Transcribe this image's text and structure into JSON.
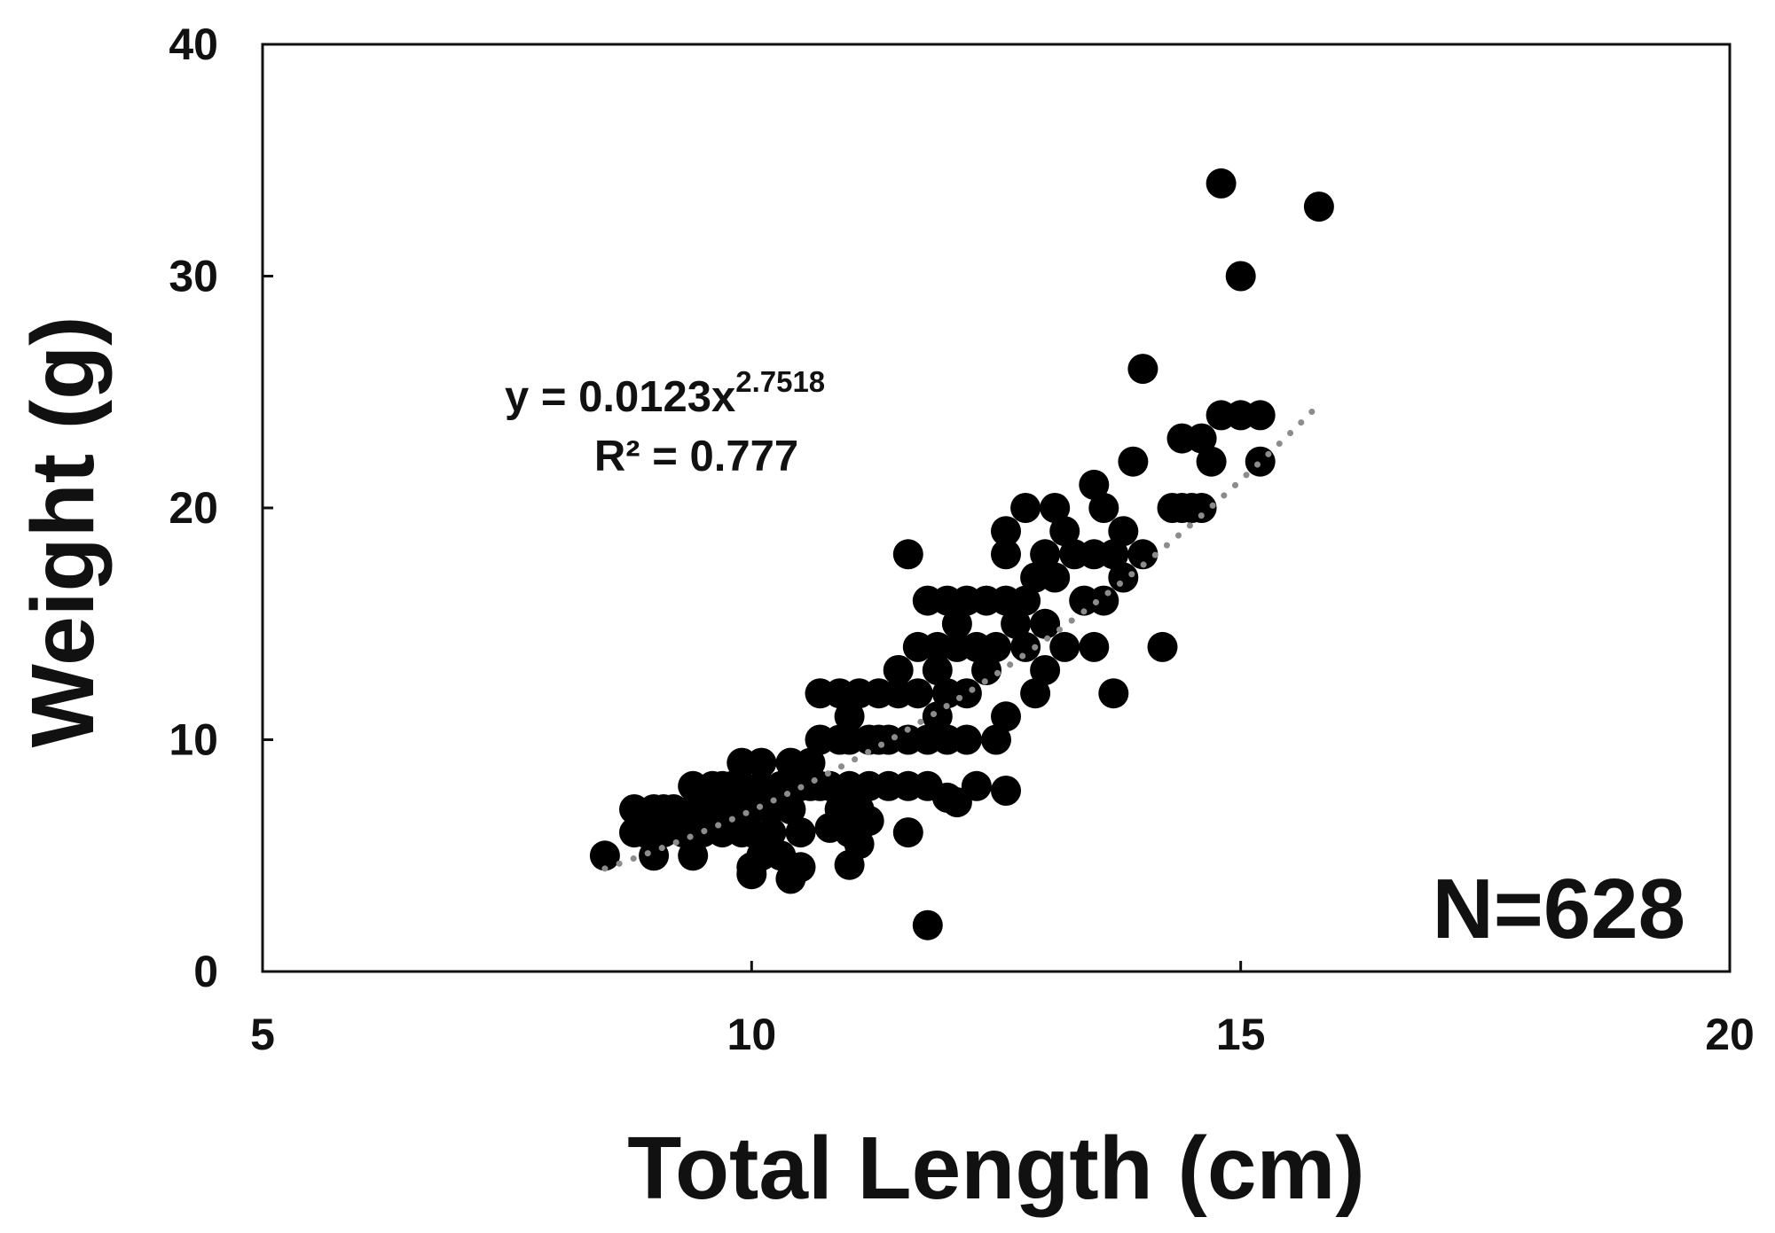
{
  "chart_data": {
    "type": "scatter",
    "xlabel": "Total Length (cm)",
    "ylabel": "Weight (g)",
    "xlim": [
      5,
      20
    ],
    "ylim": [
      0,
      40
    ],
    "xticks": [
      "5",
      "10",
      "15",
      "20"
    ],
    "yticks": [
      "0",
      "10",
      "20",
      "30",
      "40"
    ],
    "grid": false,
    "colors": {
      "points": "#000000",
      "trendline": "#8c8c8c",
      "axes": "#111111"
    },
    "annotations": {
      "equation_prefix": "y = 0.0123x",
      "equation_exponent": "2.7518",
      "r_squared": "R² = 0.777",
      "n_label": "N=628"
    },
    "trendline": {
      "type": "power",
      "a": 0.0123,
      "b": 2.7518,
      "x_range": [
        8.5,
        15.8
      ],
      "style": "dotted"
    },
    "series": [
      {
        "points": [
          [
            8.5,
            5
          ],
          [
            8.8,
            7
          ],
          [
            8.8,
            6
          ],
          [
            8.9,
            6
          ],
          [
            9.0,
            7
          ],
          [
            9.0,
            6
          ],
          [
            9.0,
            5
          ],
          [
            9.1,
            7
          ],
          [
            9.1,
            6
          ],
          [
            9.2,
            7
          ],
          [
            9.2,
            6.5
          ],
          [
            9.3,
            6
          ],
          [
            9.4,
            7
          ],
          [
            9.4,
            5
          ],
          [
            9.4,
            8
          ],
          [
            9.5,
            7
          ],
          [
            9.5,
            6
          ],
          [
            9.6,
            8
          ],
          [
            9.6,
            7
          ],
          [
            9.7,
            8
          ],
          [
            9.7,
            6
          ],
          [
            9.8,
            7
          ],
          [
            9.8,
            8
          ],
          [
            9.9,
            6
          ],
          [
            9.9,
            8
          ],
          [
            9.9,
            9
          ],
          [
            10.0,
            7
          ],
          [
            10.0,
            6
          ],
          [
            10.0,
            4.5
          ],
          [
            10.0,
            4.2
          ],
          [
            10.1,
            9
          ],
          [
            10.1,
            8
          ],
          [
            10.1,
            5
          ],
          [
            10.2,
            7
          ],
          [
            10.2,
            6
          ],
          [
            10.3,
            8
          ],
          [
            10.3,
            5
          ],
          [
            10.4,
            9
          ],
          [
            10.4,
            7
          ],
          [
            10.4,
            4
          ],
          [
            10.5,
            8
          ],
          [
            10.5,
            6
          ],
          [
            10.5,
            4.5
          ],
          [
            10.6,
            8
          ],
          [
            10.6,
            9
          ],
          [
            10.7,
            8
          ],
          [
            10.7,
            10
          ],
          [
            10.7,
            12
          ],
          [
            10.8,
            8
          ],
          [
            10.8,
            6.2
          ],
          [
            10.9,
            10
          ],
          [
            10.9,
            12
          ],
          [
            10.9,
            7
          ],
          [
            11.0,
            10
          ],
          [
            11.0,
            11
          ],
          [
            11.0,
            8
          ],
          [
            11.0,
            6
          ],
          [
            11.0,
            4.6
          ],
          [
            11.1,
            12
          ],
          [
            11.1,
            7
          ],
          [
            11.1,
            5.5
          ],
          [
            11.2,
            10
          ],
          [
            11.2,
            8
          ],
          [
            11.2,
            6.5
          ],
          [
            11.3,
            12
          ],
          [
            11.3,
            10
          ],
          [
            11.4,
            8
          ],
          [
            11.4,
            10
          ],
          [
            11.5,
            13
          ],
          [
            11.5,
            12
          ],
          [
            11.6,
            10
          ],
          [
            11.6,
            8
          ],
          [
            11.6,
            6
          ],
          [
            11.6,
            18
          ],
          [
            11.7,
            12
          ],
          [
            11.7,
            14
          ],
          [
            11.8,
            16
          ],
          [
            11.8,
            10
          ],
          [
            11.8,
            8
          ],
          [
            11.8,
            2
          ],
          [
            11.9,
            13
          ],
          [
            11.9,
            14
          ],
          [
            11.9,
            11
          ],
          [
            12.0,
            16
          ],
          [
            12.0,
            12
          ],
          [
            12.0,
            10
          ],
          [
            12.0,
            7.5
          ],
          [
            12.1,
            15
          ],
          [
            12.1,
            14
          ],
          [
            12.1,
            7.3
          ],
          [
            12.2,
            16
          ],
          [
            12.2,
            12
          ],
          [
            12.2,
            10
          ],
          [
            12.3,
            14
          ],
          [
            12.3,
            8
          ],
          [
            12.4,
            16
          ],
          [
            12.4,
            13
          ],
          [
            12.5,
            14
          ],
          [
            12.5,
            10
          ],
          [
            12.6,
            16
          ],
          [
            12.6,
            19
          ],
          [
            12.6,
            18
          ],
          [
            12.6,
            11
          ],
          [
            12.6,
            7.8
          ],
          [
            12.7,
            15
          ],
          [
            12.8,
            20
          ],
          [
            12.8,
            16
          ],
          [
            12.8,
            14
          ],
          [
            12.9,
            17
          ],
          [
            12.9,
            12
          ],
          [
            13.0,
            18
          ],
          [
            13.0,
            15
          ],
          [
            13.0,
            13
          ],
          [
            13.1,
            20
          ],
          [
            13.1,
            17
          ],
          [
            13.2,
            19
          ],
          [
            13.2,
            14
          ],
          [
            13.3,
            18
          ],
          [
            13.4,
            16
          ],
          [
            13.5,
            21
          ],
          [
            13.5,
            18
          ],
          [
            13.5,
            14
          ],
          [
            13.6,
            20
          ],
          [
            13.6,
            16
          ],
          [
            13.7,
            12
          ],
          [
            13.7,
            18
          ],
          [
            13.8,
            19
          ],
          [
            13.8,
            17
          ],
          [
            13.9,
            22
          ],
          [
            14.0,
            26
          ],
          [
            14.0,
            18
          ],
          [
            14.2,
            14
          ],
          [
            14.3,
            20
          ],
          [
            14.4,
            23
          ],
          [
            14.4,
            20
          ],
          [
            14.5,
            20
          ],
          [
            14.6,
            23
          ],
          [
            14.6,
            20
          ],
          [
            14.7,
            22
          ],
          [
            14.8,
            24
          ],
          [
            14.8,
            34
          ],
          [
            15.0,
            24
          ],
          [
            15.0,
            30
          ],
          [
            15.2,
            24
          ],
          [
            15.2,
            22
          ],
          [
            15.8,
            33
          ]
        ]
      }
    ]
  }
}
